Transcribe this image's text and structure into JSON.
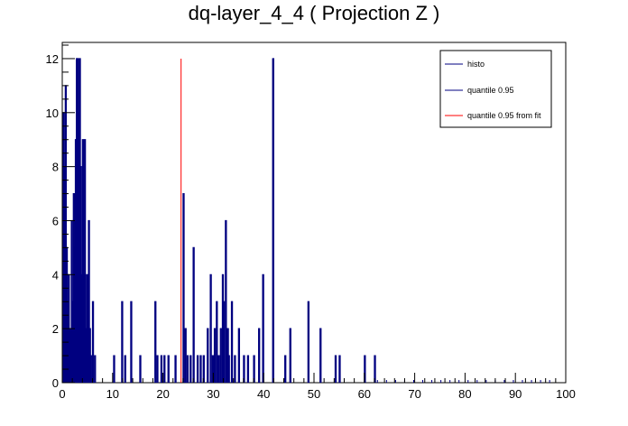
{
  "chart_data": {
    "type": "bar",
    "title": "dq-layer_4_4 ( Projection Z )",
    "xlabel": "",
    "ylabel": "",
    "xlim": [
      0,
      100
    ],
    "ylim": [
      0,
      12.6
    ],
    "xticks": [
      0,
      10,
      20,
      30,
      40,
      50,
      60,
      70,
      80,
      90,
      100
    ],
    "yticks": [
      0,
      2,
      4,
      6,
      8,
      10,
      12
    ],
    "grid": false,
    "legend_position": "top-right",
    "series": [
      {
        "name": "histo",
        "color": "#000080",
        "bin_width": 0.2,
        "bins": [
          [
            0.2,
            10
          ],
          [
            0.4,
            8
          ],
          [
            0.6,
            11
          ],
          [
            0.8,
            5
          ],
          [
            1.0,
            3
          ],
          [
            1.2,
            4
          ],
          [
            1.4,
            2
          ],
          [
            1.6,
            1
          ],
          [
            1.8,
            6
          ],
          [
            2.0,
            3
          ],
          [
            2.2,
            7
          ],
          [
            2.4,
            5
          ],
          [
            2.6,
            9
          ],
          [
            2.8,
            12
          ],
          [
            3.0,
            12
          ],
          [
            3.2,
            10
          ],
          [
            3.4,
            12
          ],
          [
            3.6,
            8
          ],
          [
            3.8,
            4
          ],
          [
            4.0,
            9
          ],
          [
            4.2,
            3
          ],
          [
            4.4,
            9
          ],
          [
            4.6,
            2
          ],
          [
            4.8,
            4
          ],
          [
            5.0,
            3
          ],
          [
            5.2,
            6
          ],
          [
            5.4,
            2
          ],
          [
            5.6,
            1
          ],
          [
            6.0,
            3
          ],
          [
            6.4,
            1
          ],
          [
            10.2,
            1
          ],
          [
            11.8,
            3
          ],
          [
            12.4,
            1
          ],
          [
            13.6,
            3
          ],
          [
            15.4,
            1
          ],
          [
            18.4,
            3
          ],
          [
            18.8,
            1
          ],
          [
            19.6,
            1
          ],
          [
            20.2,
            1
          ],
          [
            21.0,
            1
          ],
          [
            22.4,
            1
          ],
          [
            24.0,
            7
          ],
          [
            24.4,
            2
          ],
          [
            24.8,
            1
          ],
          [
            25.4,
            1
          ],
          [
            26.0,
            5
          ],
          [
            26.8,
            1
          ],
          [
            27.4,
            1
          ],
          [
            28.0,
            1
          ],
          [
            28.8,
            2
          ],
          [
            29.4,
            4
          ],
          [
            29.8,
            1
          ],
          [
            30.2,
            2
          ],
          [
            30.6,
            3
          ],
          [
            31.0,
            1
          ],
          [
            31.4,
            2
          ],
          [
            31.8,
            4
          ],
          [
            32.0,
            3
          ],
          [
            32.4,
            6
          ],
          [
            32.8,
            2
          ],
          [
            33.0,
            1
          ],
          [
            33.6,
            3
          ],
          [
            34.2,
            1
          ],
          [
            35.0,
            2
          ],
          [
            36.0,
            1
          ],
          [
            36.8,
            1
          ],
          [
            38.0,
            1
          ],
          [
            39.0,
            2
          ],
          [
            39.8,
            4
          ],
          [
            41.8,
            12
          ],
          [
            44.2,
            1
          ],
          [
            45.2,
            2
          ],
          [
            48.8,
            3
          ],
          [
            51.2,
            2
          ],
          [
            54.2,
            1
          ],
          [
            55.0,
            1
          ],
          [
            60.0,
            1
          ],
          [
            62.0,
            1
          ]
        ],
        "hairline_bins": [
          62.6,
          64.4,
          66.2,
          68.0,
          69.8,
          71.6,
          73.4,
          75.2,
          77.0,
          78.8,
          80.6,
          82.4,
          84.2,
          86.0,
          87.8,
          89.6,
          91.4,
          93.2,
          95.0,
          96.8
        ]
      },
      {
        "name": "quantile 0.95",
        "color": "#000080",
        "x": 41.8,
        "y_top": 12
      },
      {
        "name": "quantile 0.95 from fit",
        "color": "#ff0000",
        "x": 23.6,
        "y_top": 12
      }
    ]
  }
}
